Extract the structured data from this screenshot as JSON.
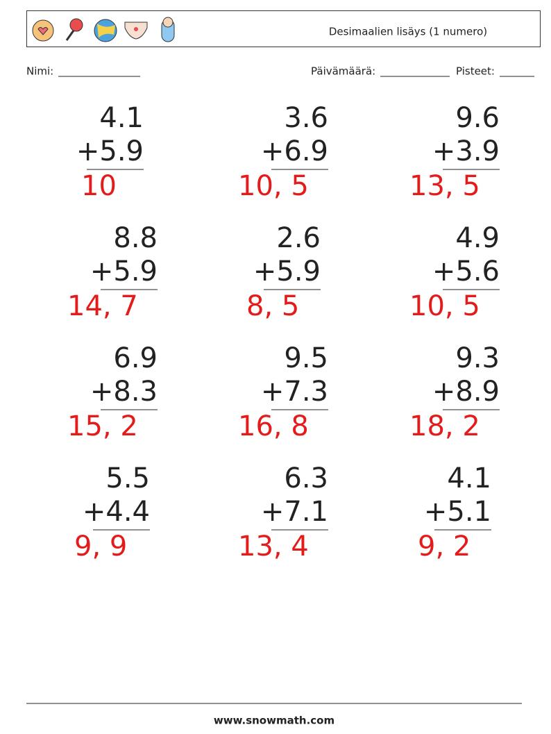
{
  "header": {
    "title": "Desimaalien lisäys (1 numero)"
  },
  "fields": {
    "name": "Nimi:",
    "date": "Päivämäärä:",
    "score": "Pisteet:"
  },
  "problems": [
    {
      "top": "4.1",
      "bottom": "+5.9",
      "answer": "10"
    },
    {
      "top": "3.6",
      "bottom": "+6.9",
      "answer": "10, 5"
    },
    {
      "top": "9.6",
      "bottom": "+3.9",
      "answer": "13, 5"
    },
    {
      "top": "8.8",
      "bottom": "+5.9",
      "answer": "14, 7"
    },
    {
      "top": "2.6",
      "bottom": "+5.9",
      "answer": "8, 5"
    },
    {
      "top": "4.9",
      "bottom": "+5.6",
      "answer": "10, 5"
    },
    {
      "top": "6.9",
      "bottom": "+8.3",
      "answer": "15, 2"
    },
    {
      "top": "9.5",
      "bottom": "+7.3",
      "answer": "16, 8"
    },
    {
      "top": "9.3",
      "bottom": "+8.9",
      "answer": "18, 2"
    },
    {
      "top": "5.5",
      "bottom": "+4.4",
      "answer": "9, 9"
    },
    {
      "top": "6.3",
      "bottom": "+7.1",
      "answer": "13, 4"
    },
    {
      "top": "4.1",
      "bottom": "+5.1",
      "answer": "9, 2"
    }
  ],
  "footer": {
    "site": "www.snowmath.com"
  }
}
